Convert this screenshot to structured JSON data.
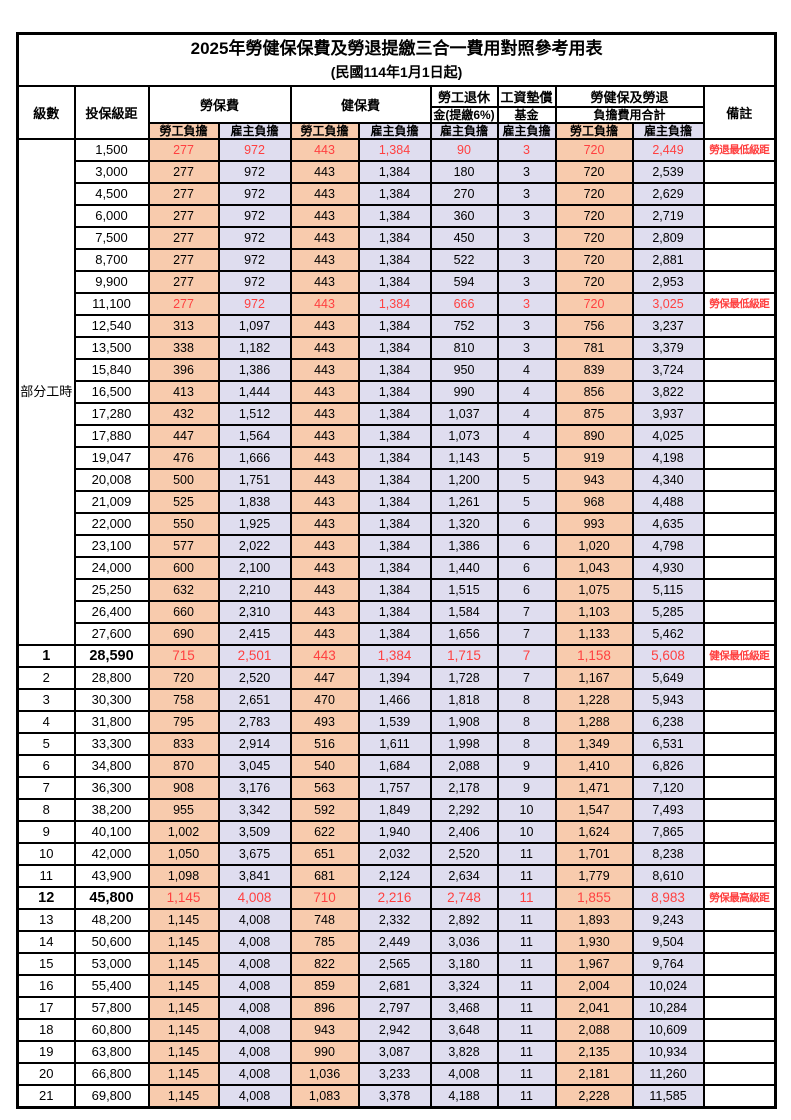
{
  "page": {
    "title": "2025年勞健保保費及勞退提繳三合一費用對照參考用表",
    "subtitle": "(民國114年1月1日起)"
  },
  "header": {
    "level": "級數",
    "bracket": "投保級距",
    "labor_insurance": "勞保費",
    "health_insurance": "健保費",
    "pension_line1": "勞工退休",
    "pension_line2": "金(提繳6%)",
    "wage_fund_line1": "工資墊償",
    "wage_fund_line2": "基金",
    "total_line1": "勞健保及勞退",
    "total_line2": "負擔費用合計",
    "remark": "備註",
    "employee": "勞工負擔",
    "employer": "雇主負擔"
  },
  "part_time": {
    "label": "部分工時",
    "rowspan": 23
  },
  "colors": {
    "employee_bg": "#F8CBAD",
    "employer_bg": "#DFDDEF",
    "highlight_text": "#FF4040",
    "border": "#000000"
  },
  "rows": [
    {
      "level": "",
      "bracket": "1,500",
      "values": [
        "277",
        "972",
        "443",
        "1,384",
        "90",
        "3",
        "720",
        "2,449"
      ],
      "remark": "勞退最低級距",
      "red": true
    },
    {
      "level": "",
      "bracket": "3,000",
      "values": [
        "277",
        "972",
        "443",
        "1,384",
        "180",
        "3",
        "720",
        "2,539"
      ],
      "remark": ""
    },
    {
      "level": "",
      "bracket": "4,500",
      "values": [
        "277",
        "972",
        "443",
        "1,384",
        "270",
        "3",
        "720",
        "2,629"
      ],
      "remark": ""
    },
    {
      "level": "",
      "bracket": "6,000",
      "values": [
        "277",
        "972",
        "443",
        "1,384",
        "360",
        "3",
        "720",
        "2,719"
      ],
      "remark": ""
    },
    {
      "level": "",
      "bracket": "7,500",
      "values": [
        "277",
        "972",
        "443",
        "1,384",
        "450",
        "3",
        "720",
        "2,809"
      ],
      "remark": ""
    },
    {
      "level": "",
      "bracket": "8,700",
      "values": [
        "277",
        "972",
        "443",
        "1,384",
        "522",
        "3",
        "720",
        "2,881"
      ],
      "remark": ""
    },
    {
      "level": "",
      "bracket": "9,900",
      "values": [
        "277",
        "972",
        "443",
        "1,384",
        "594",
        "3",
        "720",
        "2,953"
      ],
      "remark": ""
    },
    {
      "level": "",
      "bracket": "11,100",
      "values": [
        "277",
        "972",
        "443",
        "1,384",
        "666",
        "3",
        "720",
        "3,025"
      ],
      "remark": "勞保最低級距",
      "red": true
    },
    {
      "level": "",
      "bracket": "12,540",
      "values": [
        "313",
        "1,097",
        "443",
        "1,384",
        "752",
        "3",
        "756",
        "3,237"
      ],
      "remark": ""
    },
    {
      "level": "",
      "bracket": "13,500",
      "values": [
        "338",
        "1,182",
        "443",
        "1,384",
        "810",
        "3",
        "781",
        "3,379"
      ],
      "remark": ""
    },
    {
      "level": "",
      "bracket": "15,840",
      "values": [
        "396",
        "1,386",
        "443",
        "1,384",
        "950",
        "4",
        "839",
        "3,724"
      ],
      "remark": ""
    },
    {
      "level": "",
      "bracket": "16,500",
      "values": [
        "413",
        "1,444",
        "443",
        "1,384",
        "990",
        "4",
        "856",
        "3,822"
      ],
      "remark": ""
    },
    {
      "level": "",
      "bracket": "17,280",
      "values": [
        "432",
        "1,512",
        "443",
        "1,384",
        "1,037",
        "4",
        "875",
        "3,937"
      ],
      "remark": ""
    },
    {
      "level": "",
      "bracket": "17,880",
      "values": [
        "447",
        "1,564",
        "443",
        "1,384",
        "1,073",
        "4",
        "890",
        "4,025"
      ],
      "remark": ""
    },
    {
      "level": "",
      "bracket": "19,047",
      "values": [
        "476",
        "1,666",
        "443",
        "1,384",
        "1,143",
        "5",
        "919",
        "4,198"
      ],
      "remark": ""
    },
    {
      "level": "",
      "bracket": "20,008",
      "values": [
        "500",
        "1,751",
        "443",
        "1,384",
        "1,200",
        "5",
        "943",
        "4,340"
      ],
      "remark": ""
    },
    {
      "level": "",
      "bracket": "21,009",
      "values": [
        "525",
        "1,838",
        "443",
        "1,384",
        "1,261",
        "5",
        "968",
        "4,488"
      ],
      "remark": ""
    },
    {
      "level": "",
      "bracket": "22,000",
      "values": [
        "550",
        "1,925",
        "443",
        "1,384",
        "1,320",
        "6",
        "993",
        "4,635"
      ],
      "remark": ""
    },
    {
      "level": "",
      "bracket": "23,100",
      "values": [
        "577",
        "2,022",
        "443",
        "1,384",
        "1,386",
        "6",
        "1,020",
        "4,798"
      ],
      "remark": ""
    },
    {
      "level": "",
      "bracket": "24,000",
      "values": [
        "600",
        "2,100",
        "443",
        "1,384",
        "1,440",
        "6",
        "1,043",
        "4,930"
      ],
      "remark": ""
    },
    {
      "level": "",
      "bracket": "25,250",
      "values": [
        "632",
        "2,210",
        "443",
        "1,384",
        "1,515",
        "6",
        "1,075",
        "5,115"
      ],
      "remark": ""
    },
    {
      "level": "",
      "bracket": "26,400",
      "values": [
        "660",
        "2,310",
        "443",
        "1,384",
        "1,584",
        "7",
        "1,103",
        "5,285"
      ],
      "remark": ""
    },
    {
      "level": "",
      "bracket": "27,600",
      "values": [
        "690",
        "2,415",
        "443",
        "1,384",
        "1,656",
        "7",
        "1,133",
        "5,462"
      ],
      "remark": ""
    },
    {
      "level": "1",
      "bracket": "28,590",
      "values": [
        "715",
        "2,501",
        "443",
        "1,384",
        "1,715",
        "7",
        "1,158",
        "5,608"
      ],
      "remark": "健保最低級距",
      "red": true,
      "bold": true
    },
    {
      "level": "2",
      "bracket": "28,800",
      "values": [
        "720",
        "2,520",
        "447",
        "1,394",
        "1,728",
        "7",
        "1,167",
        "5,649"
      ],
      "remark": ""
    },
    {
      "level": "3",
      "bracket": "30,300",
      "values": [
        "758",
        "2,651",
        "470",
        "1,466",
        "1,818",
        "8",
        "1,228",
        "5,943"
      ],
      "remark": ""
    },
    {
      "level": "4",
      "bracket": "31,800",
      "values": [
        "795",
        "2,783",
        "493",
        "1,539",
        "1,908",
        "8",
        "1,288",
        "6,238"
      ],
      "remark": ""
    },
    {
      "level": "5",
      "bracket": "33,300",
      "values": [
        "833",
        "2,914",
        "516",
        "1,611",
        "1,998",
        "8",
        "1,349",
        "6,531"
      ],
      "remark": ""
    },
    {
      "level": "6",
      "bracket": "34,800",
      "values": [
        "870",
        "3,045",
        "540",
        "1,684",
        "2,088",
        "9",
        "1,410",
        "6,826"
      ],
      "remark": ""
    },
    {
      "level": "7",
      "bracket": "36,300",
      "values": [
        "908",
        "3,176",
        "563",
        "1,757",
        "2,178",
        "9",
        "1,471",
        "7,120"
      ],
      "remark": ""
    },
    {
      "level": "8",
      "bracket": "38,200",
      "values": [
        "955",
        "3,342",
        "592",
        "1,849",
        "2,292",
        "10",
        "1,547",
        "7,493"
      ],
      "remark": ""
    },
    {
      "level": "9",
      "bracket": "40,100",
      "values": [
        "1,002",
        "3,509",
        "622",
        "1,940",
        "2,406",
        "10",
        "1,624",
        "7,865"
      ],
      "remark": ""
    },
    {
      "level": "10",
      "bracket": "42,000",
      "values": [
        "1,050",
        "3,675",
        "651",
        "2,032",
        "2,520",
        "11",
        "1,701",
        "8,238"
      ],
      "remark": ""
    },
    {
      "level": "11",
      "bracket": "43,900",
      "values": [
        "1,098",
        "3,841",
        "681",
        "2,124",
        "2,634",
        "11",
        "1,779",
        "8,610"
      ],
      "remark": ""
    },
    {
      "level": "12",
      "bracket": "45,800",
      "values": [
        "1,145",
        "4,008",
        "710",
        "2,216",
        "2,748",
        "11",
        "1,855",
        "8,983"
      ],
      "remark": "勞保最高級距",
      "red": true,
      "bold": true
    },
    {
      "level": "13",
      "bracket": "48,200",
      "values": [
        "1,145",
        "4,008",
        "748",
        "2,332",
        "2,892",
        "11",
        "1,893",
        "9,243"
      ],
      "remark": ""
    },
    {
      "level": "14",
      "bracket": "50,600",
      "values": [
        "1,145",
        "4,008",
        "785",
        "2,449",
        "3,036",
        "11",
        "1,930",
        "9,504"
      ],
      "remark": ""
    },
    {
      "level": "15",
      "bracket": "53,000",
      "values": [
        "1,145",
        "4,008",
        "822",
        "2,565",
        "3,180",
        "11",
        "1,967",
        "9,764"
      ],
      "remark": ""
    },
    {
      "level": "16",
      "bracket": "55,400",
      "values": [
        "1,145",
        "4,008",
        "859",
        "2,681",
        "3,324",
        "11",
        "2,004",
        "10,024"
      ],
      "remark": ""
    },
    {
      "level": "17",
      "bracket": "57,800",
      "values": [
        "1,145",
        "4,008",
        "896",
        "2,797",
        "3,468",
        "11",
        "2,041",
        "10,284"
      ],
      "remark": ""
    },
    {
      "level": "18",
      "bracket": "60,800",
      "values": [
        "1,145",
        "4,008",
        "943",
        "2,942",
        "3,648",
        "11",
        "2,088",
        "10,609"
      ],
      "remark": ""
    },
    {
      "level": "19",
      "bracket": "63,800",
      "values": [
        "1,145",
        "4,008",
        "990",
        "3,087",
        "3,828",
        "11",
        "2,135",
        "10,934"
      ],
      "remark": ""
    },
    {
      "level": "20",
      "bracket": "66,800",
      "values": [
        "1,145",
        "4,008",
        "1,036",
        "3,233",
        "4,008",
        "11",
        "2,181",
        "11,260"
      ],
      "remark": ""
    },
    {
      "level": "21",
      "bracket": "69,800",
      "values": [
        "1,145",
        "4,008",
        "1,083",
        "3,378",
        "4,188",
        "11",
        "2,228",
        "11,585"
      ],
      "remark": ""
    }
  ]
}
